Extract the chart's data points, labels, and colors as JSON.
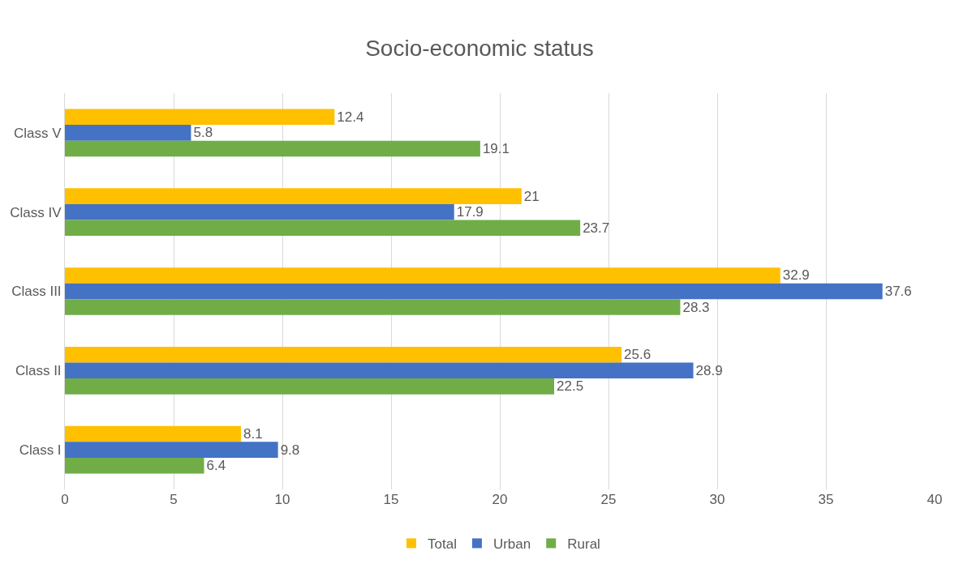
{
  "chart_data": {
    "type": "bar",
    "orientation": "horizontal",
    "title": "Socio-economic status",
    "categories": [
      "Class V",
      "Class IV",
      "Class III",
      "Class II",
      "Class I"
    ],
    "series": [
      {
        "name": "Total",
        "color": "#ffc000",
        "values": [
          12.4,
          21,
          32.9,
          25.6,
          8.1
        ]
      },
      {
        "name": "Urban",
        "color": "#4472c4",
        "values": [
          5.8,
          17.9,
          37.6,
          28.9,
          9.8
        ]
      },
      {
        "name": "Rural",
        "color": "#70ad47",
        "values": [
          19.1,
          23.7,
          28.3,
          22.5,
          6.4
        ]
      }
    ],
    "xlim": [
      0,
      40
    ],
    "xticks": [
      0,
      5,
      10,
      15,
      20,
      25,
      30,
      35,
      40
    ],
    "grid": "x",
    "legend": "bottom",
    "data_labels": true
  }
}
